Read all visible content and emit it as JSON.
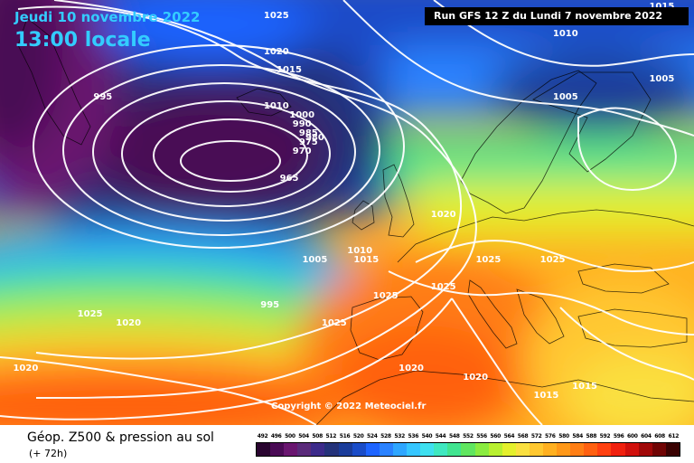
{
  "header": {
    "date_text": "Jeudi 10 novembre 2022",
    "time_text": "13:00 locale",
    "run_text": "Run GFS 12 Z du Lundi 7 novembre 2022"
  },
  "copyright": "Copyright © 2022 Meteociel.fr",
  "footer": {
    "title": "Géop. Z500 & pression au sol",
    "forecast_step": "(+ 72h)"
  },
  "legend": {
    "values": [
      "492",
      "496",
      "500",
      "504",
      "508",
      "512",
      "516",
      "520",
      "524",
      "528",
      "532",
      "536",
      "540",
      "544",
      "548",
      "552",
      "556",
      "560",
      "564",
      "568",
      "572",
      "576",
      "580",
      "584",
      "588",
      "592",
      "596",
      "600",
      "604",
      "608",
      "612"
    ],
    "colors": [
      "#2a0530",
      "#4a0a55",
      "#6a1670",
      "#5a2a7a",
      "#3c2a8a",
      "#24327a",
      "#1a3c9a",
      "#1a4cc8",
      "#1e64ff",
      "#2a82ff",
      "#2ea6ff",
      "#36c6ff",
      "#3ee0f0",
      "#3ee8c0",
      "#40e490",
      "#60e660",
      "#8aec40",
      "#b8f030",
      "#e4f02c",
      "#fae040",
      "#ffc830",
      "#ffb020",
      "#ff9818",
      "#ff7e14",
      "#ff6010",
      "#ff4010",
      "#f0200e",
      "#d0100c",
      "#a00808",
      "#700404",
      "#3a0202"
    ]
  },
  "isobars": [
    {
      "value": "1025",
      "lon": -15,
      "lat": 72
    },
    {
      "value": "1020",
      "lon": -15,
      "lat": 68
    },
    {
      "value": "1015",
      "lon": -13,
      "lat": 66
    },
    {
      "value": "1010",
      "lon": -15,
      "lat": 62
    },
    {
      "value": "1000",
      "lon": -11,
      "lat": 61
    },
    {
      "value": "990",
      "lon": -11,
      "lat": 60
    },
    {
      "value": "985",
      "lon": -10,
      "lat": 59
    },
    {
      "value": "980",
      "lon": -9,
      "lat": 58.5
    },
    {
      "value": "975",
      "lon": -10,
      "lat": 58
    },
    {
      "value": "970",
      "lon": -11,
      "lat": 57
    },
    {
      "value": "965",
      "lon": -13,
      "lat": 54
    },
    {
      "value": "995",
      "lon": -42,
      "lat": 63
    },
    {
      "value": "1010",
      "lon": 30,
      "lat": 70
    },
    {
      "value": "1005",
      "lon": 30,
      "lat": 63
    },
    {
      "value": "1005",
      "lon": 45,
      "lat": 65
    },
    {
      "value": "1015",
      "lon": 45,
      "lat": 73
    },
    {
      "value": "1020",
      "lon": 11,
      "lat": 50
    },
    {
      "value": "1010",
      "lon": -2,
      "lat": 46
    },
    {
      "value": "1015",
      "lon": -1,
      "lat": 45
    },
    {
      "value": "1005",
      "lon": -9,
      "lat": 45
    },
    {
      "value": "995",
      "lon": -16,
      "lat": 40
    },
    {
      "value": "1025",
      "lon": 18,
      "lat": 45
    },
    {
      "value": "1025",
      "lon": 28,
      "lat": 45
    },
    {
      "value": "1025",
      "lon": 11,
      "lat": 42
    },
    {
      "value": "1025",
      "lon": 2,
      "lat": 41
    },
    {
      "value": "1025",
      "lon": -6,
      "lat": 38
    },
    {
      "value": "1025",
      "lon": -44,
      "lat": 39
    },
    {
      "value": "1020",
      "lon": -38,
      "lat": 38
    },
    {
      "value": "1020",
      "lon": 16,
      "lat": 32
    },
    {
      "value": "1020",
      "lon": -54,
      "lat": 33
    },
    {
      "value": "1015",
      "lon": 27,
      "lat": 30
    },
    {
      "value": "1015",
      "lon": 33,
      "lat": 31
    },
    {
      "value": "1020",
      "lon": 6,
      "lat": 33
    }
  ]
}
